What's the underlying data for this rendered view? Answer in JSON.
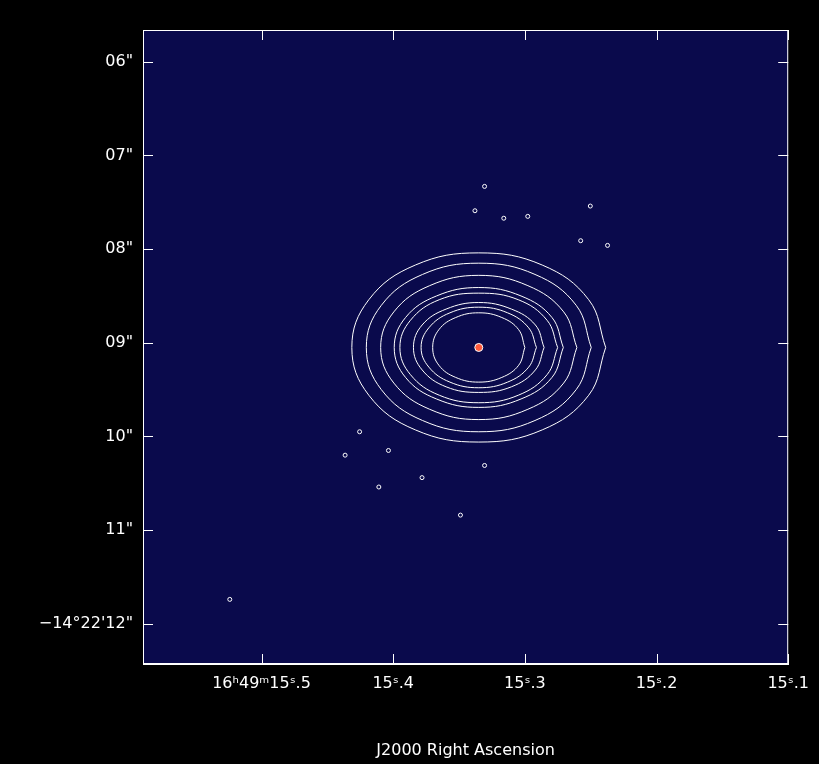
{
  "chart_data": {
    "type": "scatter",
    "x_label": "J2000 Right Ascension",
    "xlim": [
      15.59,
      15.1
    ],
    "xticks": [
      {
        "value": 15.5,
        "label": "16ʰ49ᵐ15ˢ.5"
      },
      {
        "value": 15.4,
        "label": "15ˢ.4"
      },
      {
        "value": 15.3,
        "label": "15ˢ.3"
      },
      {
        "value": 15.2,
        "label": "15ˢ.2"
      },
      {
        "value": 15.1,
        "label": "15ˢ.1"
      }
    ],
    "ylim": [
      12.43,
      5.66
    ],
    "yticks": [
      {
        "value": 6,
        "label": "06\""
      },
      {
        "value": 7,
        "label": "07\""
      },
      {
        "value": 8,
        "label": "08\""
      },
      {
        "value": 9,
        "label": "09\""
      },
      {
        "value": 10,
        "label": "10\""
      },
      {
        "value": 11,
        "label": "11\""
      },
      {
        "value": 12,
        "label": "−14°22'12\""
      }
    ],
    "grid": false,
    "color": "#ffffff",
    "contours": [
      {
        "x": [
          15.2386,
          15.2515,
          15.2868,
          15.335,
          15.3832,
          15.4185,
          15.4314,
          15.4185,
          15.3832,
          15.335,
          15.2868,
          15.2515
        ],
        "y": [
          9.05,
          8.54,
          8.17,
          8.04,
          8.17,
          8.54,
          9.05,
          9.56,
          9.93,
          10.06,
          9.93,
          9.56
        ]
      },
      {
        "x": [
          15.2496,
          15.261,
          15.2923,
          15.335,
          15.3777,
          15.409,
          15.4204,
          15.409,
          15.3777,
          15.335,
          15.2923,
          15.261
        ],
        "y": [
          9.05,
          8.6,
          8.27,
          8.15,
          8.27,
          8.6,
          9.05,
          9.5,
          9.83,
          9.95,
          9.83,
          9.5
        ]
      },
      {
        "x": [
          15.2605,
          15.2705,
          15.2977,
          15.335,
          15.3723,
          15.3995,
          15.4095,
          15.3995,
          15.3723,
          15.335,
          15.2977,
          15.2705
        ],
        "y": [
          9.05,
          8.67,
          8.39,
          8.28,
          8.39,
          8.67,
          9.05,
          9.43,
          9.71,
          9.82,
          9.71,
          9.43
        ]
      },
      {
        "x": [
          15.2708,
          15.2794,
          15.3029,
          15.335,
          15.3671,
          15.3906,
          15.3992,
          15.3906,
          15.3671,
          15.335,
          15.3029,
          15.2794
        ],
        "y": [
          9.05,
          8.73,
          8.5,
          8.41,
          8.5,
          8.73,
          9.05,
          9.37,
          9.6,
          9.69,
          9.6,
          9.37
        ]
      },
      {
        "x": [
          15.2751,
          15.2831,
          15.305,
          15.335,
          15.365,
          15.3869,
          15.3949,
          15.3869,
          15.365,
          15.335,
          15.305,
          15.2831
        ],
        "y": [
          9.05,
          8.76,
          8.54,
          8.47,
          8.54,
          8.76,
          9.05,
          9.34,
          9.56,
          9.64,
          9.56,
          9.34
        ]
      },
      {
        "x": [
          15.2854,
          15.292,
          15.3102,
          15.335,
          15.3598,
          15.378,
          15.3846,
          15.378,
          15.3598,
          15.335,
          15.3102,
          15.292
        ],
        "y": [
          9.05,
          8.81,
          8.64,
          8.57,
          8.64,
          8.81,
          9.05,
          9.29,
          9.47,
          9.53,
          9.47,
          9.29
        ]
      },
      {
        "x": [
          15.2912,
          15.2971,
          15.3131,
          15.335,
          15.3569,
          15.3729,
          15.3788,
          15.3729,
          15.3569,
          15.335,
          15.3131,
          15.2971
        ],
        "y": [
          9.05,
          8.84,
          8.68,
          8.62,
          8.68,
          8.84,
          9.05,
          9.26,
          9.42,
          9.48,
          9.42,
          9.26
        ]
      },
      {
        "x": [
          15.3,
          15.3047,
          15.3175,
          15.335,
          15.3525,
          15.3653,
          15.37,
          15.3653,
          15.3525,
          15.335,
          15.3175,
          15.3047
        ],
        "y": [
          9.05,
          8.86,
          8.73,
          8.68,
          8.73,
          8.86,
          9.05,
          9.24,
          9.37,
          9.42,
          9.37,
          9.24
        ]
      }
    ],
    "islands": {
      "x": [
        15.3306,
        15.3379,
        15.316,
        15.2576,
        15.2372,
        15.2978,
        15.2503,
        15.4255,
        15.4365,
        15.4036,
        15.3781,
        15.3489,
        15.4109,
        15.3306,
        15.5241
      ],
      "y": [
        7.33,
        7.59,
        7.67,
        7.91,
        7.96,
        7.65,
        7.54,
        9.95,
        10.2,
        10.15,
        10.44,
        10.84,
        10.54,
        10.31,
        11.74
      ]
    },
    "source": {
      "x": 15.335,
      "y": 9.05
    }
  }
}
